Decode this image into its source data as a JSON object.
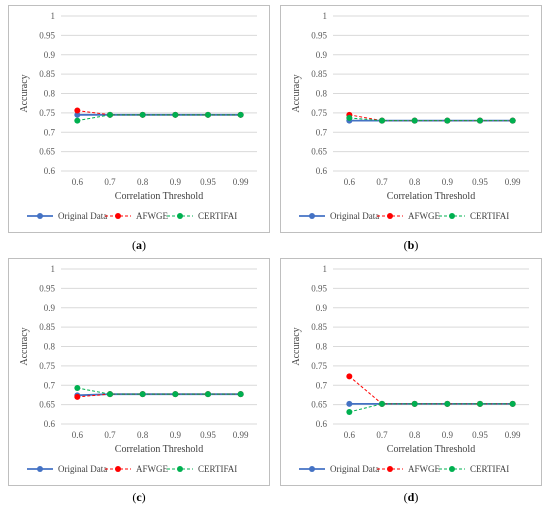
{
  "style": {
    "original_color": "#4472C4",
    "afwge_color": "#FF0000",
    "certifai_color": "#00B050",
    "grid_color": "#d9d9d9"
  },
  "legend": {
    "original": "Original Data",
    "afwge": "AFWGE",
    "certifai": "CERTIFAI"
  },
  "chart_data": [
    {
      "type": "line",
      "caption": "a",
      "xlabel": "Correlation Threshold",
      "ylabel": "Accuracy",
      "categories": [
        "0.6",
        "0.7",
        "0.8",
        "0.9",
        "0.95",
        "0.99"
      ],
      "ylim": [
        0.6,
        1
      ],
      "yticks": [
        "0.6",
        "0.65",
        "0.7",
        "0.75",
        "0.8",
        "0.85",
        "0.9",
        "0.95",
        "1"
      ],
      "grid": true,
      "legend_position": "bottom",
      "series": [
        {
          "name": "Original Data",
          "values": [
            0.745,
            0.745,
            0.745,
            0.745,
            0.745,
            0.745
          ]
        },
        {
          "name": "AFWGE",
          "values": [
            0.756,
            0.745,
            0.745,
            0.745,
            0.745,
            0.745
          ]
        },
        {
          "name": "CERTIFAI",
          "values": [
            0.73,
            0.745,
            0.745,
            0.745,
            0.745,
            0.745
          ]
        }
      ]
    },
    {
      "type": "line",
      "caption": "b",
      "xlabel": "Correlation Threshold",
      "ylabel": "Accuracy",
      "categories": [
        "0.6",
        "0.7",
        "0.8",
        "0.9",
        "0.95",
        "0.99"
      ],
      "ylim": [
        0.6,
        1
      ],
      "yticks": [
        "0.6",
        "0.65",
        "0.7",
        "0.75",
        "0.8",
        "0.85",
        "0.9",
        "0.95",
        "1"
      ],
      "grid": true,
      "legend_position": "bottom",
      "series": [
        {
          "name": "Original Data",
          "values": [
            0.73,
            0.73,
            0.73,
            0.73,
            0.73,
            0.73
          ]
        },
        {
          "name": "AFWGE",
          "values": [
            0.745,
            0.73,
            0.73,
            0.73,
            0.73,
            0.73
          ]
        },
        {
          "name": "CERTIFAI",
          "values": [
            0.737,
            0.73,
            0.73,
            0.73,
            0.73,
            0.73
          ]
        }
      ]
    },
    {
      "type": "line",
      "caption": "c",
      "xlabel": "Correlation Threshold",
      "ylabel": "Accuracy",
      "categories": [
        "0.6",
        "0.7",
        "0.8",
        "0.9",
        "0.95",
        "0.99"
      ],
      "ylim": [
        0.6,
        1
      ],
      "yticks": [
        "0.6",
        "0.65",
        "0.7",
        "0.75",
        "0.8",
        "0.85",
        "0.9",
        "0.95",
        "1"
      ],
      "grid": true,
      "legend_position": "bottom",
      "series": [
        {
          "name": "Original Data",
          "values": [
            0.674,
            0.677,
            0.677,
            0.677,
            0.677,
            0.677
          ]
        },
        {
          "name": "AFWGE",
          "values": [
            0.67,
            0.677,
            0.677,
            0.677,
            0.677,
            0.677
          ]
        },
        {
          "name": "CERTIFAI",
          "values": [
            0.693,
            0.677,
            0.677,
            0.677,
            0.677,
            0.677
          ]
        }
      ]
    },
    {
      "type": "line",
      "caption": "d",
      "xlabel": "Correlation Threshold",
      "ylabel": "Accuracy",
      "categories": [
        "0.6",
        "0.7",
        "0.8",
        "0.9",
        "0.95",
        "0.99"
      ],
      "ylim": [
        0.6,
        1
      ],
      "yticks": [
        "0.6",
        "0.65",
        "0.7",
        "0.75",
        "0.8",
        "0.85",
        "0.9",
        "0.95",
        "1"
      ],
      "grid": true,
      "legend_position": "bottom",
      "series": [
        {
          "name": "Original Data",
          "values": [
            0.652,
            0.652,
            0.652,
            0.652,
            0.652,
            0.652
          ]
        },
        {
          "name": "AFWGE",
          "values": [
            0.723,
            0.652,
            0.652,
            0.652,
            0.652,
            0.652
          ]
        },
        {
          "name": "CERTIFAI",
          "values": [
            0.631,
            0.652,
            0.652,
            0.652,
            0.652,
            0.652
          ]
        }
      ]
    }
  ]
}
